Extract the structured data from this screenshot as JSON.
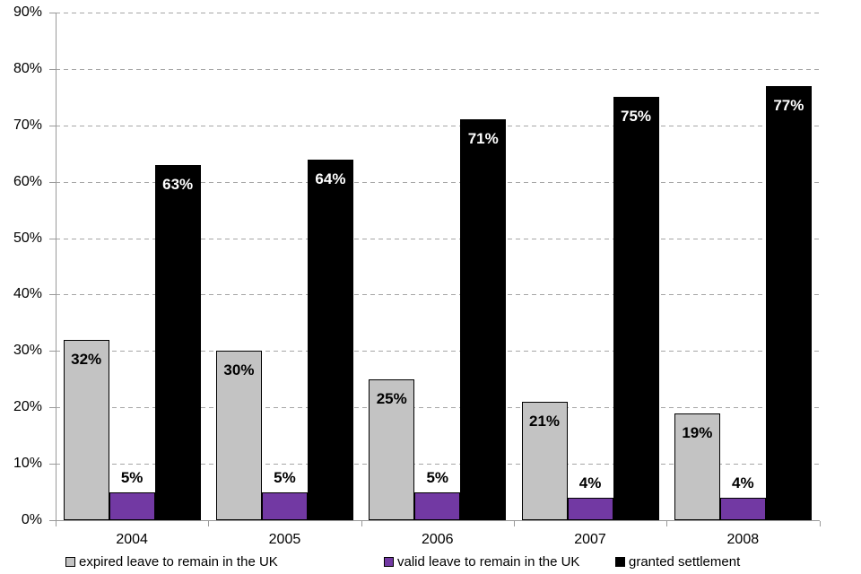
{
  "chart_data": {
    "type": "bar",
    "title": "",
    "xlabel": "",
    "ylabel": "",
    "categories": [
      "2004",
      "2005",
      "2006",
      "2007",
      "2008"
    ],
    "series": [
      {
        "name": "expired leave to remain in the UK",
        "color": "#C3C3C3",
        "label_color": "#000000",
        "label_position": "inside-top",
        "values": [
          32,
          30,
          25,
          21,
          19
        ],
        "labels": [
          "32%",
          "30%",
          "25%",
          "21%",
          "19%"
        ]
      },
      {
        "name": "valid leave to remain in the UK",
        "color": "#7239A3",
        "label_color": "#000000",
        "label_position": "outside-top",
        "values": [
          5,
          5,
          5,
          4,
          4
        ],
        "labels": [
          "5%",
          "5%",
          "5%",
          "4%",
          "4%"
        ]
      },
      {
        "name": "granted settlement",
        "color": "#000000",
        "label_color": "#FFFFFF",
        "label_position": "inside-top",
        "values": [
          63,
          64,
          71,
          75,
          77
        ],
        "labels": [
          "63%",
          "64%",
          "71%",
          "75%",
          "77%"
        ]
      }
    ],
    "ylim": [
      0,
      90
    ],
    "ytick_step": 10,
    "yticks": [
      "0%",
      "10%",
      "20%",
      "30%",
      "40%",
      "50%",
      "60%",
      "70%",
      "80%",
      "90%"
    ],
    "grid": "horizontal-dashed",
    "legend_position": "bottom",
    "colors": {
      "gridline": "#A6A6A6",
      "axis": "#999999",
      "bar_border": "#000000",
      "background": "#FFFFFF"
    }
  }
}
